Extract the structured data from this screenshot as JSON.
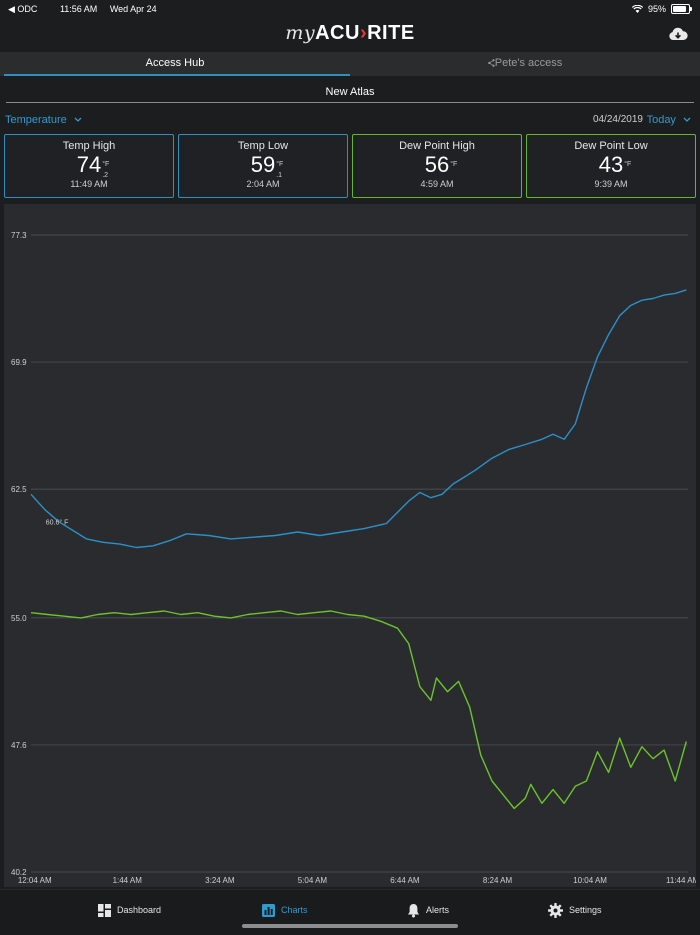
{
  "status_bar": {
    "carrier": "ODC",
    "time": "11:56 AM",
    "date": "Wed Apr 24",
    "battery": "95%"
  },
  "app": {
    "logo_my": "my",
    "logo_brand_a": "ACU",
    "logo_brand_b": "RITE"
  },
  "tabs": [
    {
      "label": "Access Hub"
    },
    {
      "label": "Pete's access"
    }
  ],
  "station_name": "New Atlas",
  "controls": {
    "sensor": "Temperature",
    "date": "04/24/2019",
    "range": "Today"
  },
  "cards": [
    {
      "title": "Temp High",
      "value": "74",
      "unit": "°F",
      "decimal": ".2",
      "time": "11:49 AM",
      "kind": "temp"
    },
    {
      "title": "Temp Low",
      "value": "59",
      "unit": "°F",
      "decimal": ".1",
      "time": "2:04 AM",
      "kind": "temp"
    },
    {
      "title": "Dew Point High",
      "value": "56",
      "unit": "°F",
      "decimal": "",
      "time": "4:59 AM",
      "kind": "dew"
    },
    {
      "title": "Dew Point Low",
      "value": "43",
      "unit": "°F",
      "decimal": "",
      "time": "9:39 AM",
      "kind": "dew"
    }
  ],
  "colors": {
    "temp": "#2a90c9",
    "dew": "#6cc32a",
    "accent": "#2f9bd1"
  },
  "chart_data": {
    "type": "line",
    "ylim": [
      40.2,
      77.3
    ],
    "yticks": [
      "77.3",
      "69.9",
      "62.5",
      "55.0",
      "47.6",
      "40.2"
    ],
    "ytick_values": [
      77.3,
      69.9,
      62.5,
      55.0,
      47.6,
      40.2
    ],
    "xlim": [
      0,
      11.83
    ],
    "xticks": [
      "12:04 AM",
      "1:44 AM",
      "3:24 AM",
      "5:04 AM",
      "6:44 AM",
      "8:24 AM",
      "10:04 AM",
      "11:44 AM"
    ],
    "xtick_values": [
      0.067,
      1.733,
      3.4,
      5.067,
      6.733,
      8.4,
      10.067,
      11.733
    ],
    "annotation": "60.6° F",
    "series": [
      {
        "name": "Temperature",
        "x": [
          0,
          0.25,
          0.5,
          0.8,
          1.0,
          1.3,
          1.6,
          1.9,
          2.2,
          2.5,
          2.8,
          3.2,
          3.6,
          4.0,
          4.4,
          4.8,
          5.2,
          5.6,
          6.0,
          6.4,
          6.8,
          7.0,
          7.2,
          7.4,
          7.6,
          7.8,
          8.0,
          8.3,
          8.6,
          8.9,
          9.2,
          9.4,
          9.6,
          9.8,
          10.0,
          10.2,
          10.4,
          10.6,
          10.8,
          11.0,
          11.2,
          11.4,
          11.6,
          11.8
        ],
        "values": [
          62.2,
          61.3,
          60.6,
          60.0,
          59.6,
          59.4,
          59.3,
          59.1,
          59.2,
          59.5,
          59.9,
          59.8,
          59.6,
          59.7,
          59.8,
          60.0,
          59.8,
          60.0,
          60.2,
          60.5,
          61.8,
          62.3,
          62.0,
          62.2,
          62.8,
          63.2,
          63.6,
          64.3,
          64.8,
          65.1,
          65.4,
          65.7,
          65.4,
          66.3,
          68.4,
          70.2,
          71.5,
          72.6,
          73.2,
          73.5,
          73.6,
          73.8,
          73.9,
          74.1
        ]
      },
      {
        "name": "Dew Point",
        "x": [
          0,
          0.3,
          0.6,
          0.9,
          1.2,
          1.5,
          1.8,
          2.1,
          2.4,
          2.7,
          3.0,
          3.3,
          3.6,
          3.9,
          4.2,
          4.5,
          4.8,
          5.1,
          5.4,
          5.7,
          6.0,
          6.3,
          6.6,
          6.8,
          7.0,
          7.2,
          7.3,
          7.5,
          7.7,
          7.9,
          8.1,
          8.3,
          8.5,
          8.7,
          8.9,
          9.0,
          9.2,
          9.4,
          9.6,
          9.8,
          10.0,
          10.2,
          10.4,
          10.6,
          10.8,
          11.0,
          11.2,
          11.4,
          11.6,
          11.8
        ],
        "values": [
          55.3,
          55.2,
          55.1,
          55.0,
          55.2,
          55.3,
          55.2,
          55.3,
          55.4,
          55.2,
          55.3,
          55.1,
          55.0,
          55.2,
          55.3,
          55.4,
          55.2,
          55.3,
          55.4,
          55.2,
          55.1,
          54.8,
          54.4,
          53.5,
          51.0,
          50.2,
          51.5,
          50.7,
          51.3,
          49.8,
          47.0,
          45.5,
          44.7,
          43.9,
          44.5,
          45.3,
          44.2,
          45.0,
          44.2,
          45.2,
          45.5,
          47.2,
          46.0,
          48.0,
          46.3,
          47.5,
          46.8,
          47.3,
          45.5,
          47.8
        ]
      }
    ]
  },
  "nav": [
    {
      "label": "Dashboard",
      "icon": "dashboard-icon",
      "active": false
    },
    {
      "label": "Charts",
      "icon": "charts-icon",
      "active": true
    },
    {
      "label": "Alerts",
      "icon": "bell-icon",
      "active": false
    },
    {
      "label": "Settings",
      "icon": "gear-icon",
      "active": false
    }
  ]
}
